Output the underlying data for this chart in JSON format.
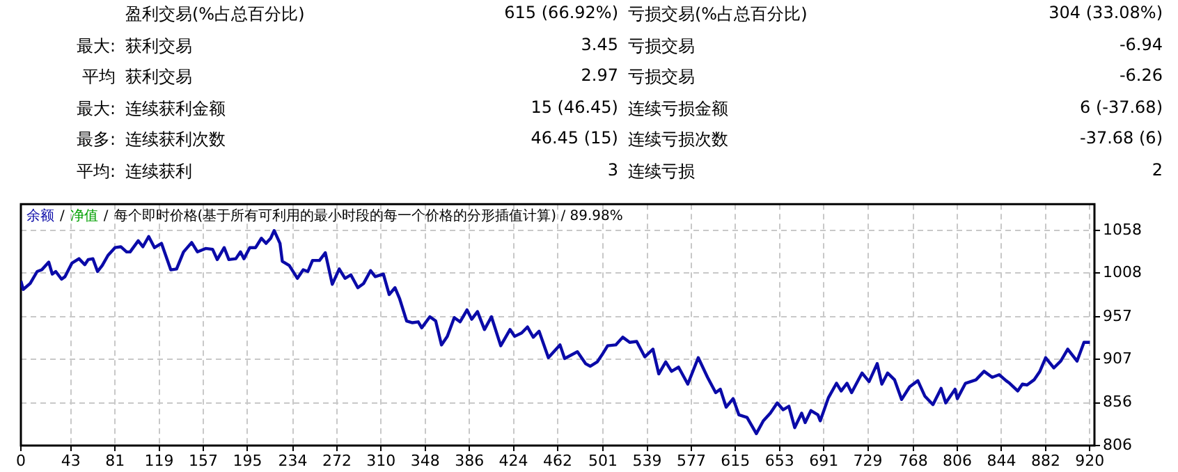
{
  "chart_data": [
    {
      "type": "other",
      "annotations": [
        "盈利交易(%占总百分比)",
        "615 (66.92%)",
        "亏损交易(%占总百分比)",
        "304 (33.08%)",
        "最大:",
        "获利交易",
        "3.45",
        "亏损交易",
        "-6.94",
        "平均",
        "获利交易",
        "2.97",
        "亏损交易",
        "-6.26",
        "最大:",
        "连续获利金额",
        "15 (46.45)",
        "连续亏损金额",
        "6 (-37.68)",
        "最多:",
        "连续获利次数",
        "46.45 (15)",
        "连续亏损次数",
        "-37.68 (6)",
        "平均:",
        "连续获利",
        "3",
        "连续亏损",
        "2"
      ]
    },
    {
      "type": "line",
      "title": "每个即时价格(基于所有可利用的最小时段的每一个价格的分形插值计算) / 89.98%",
      "annotations": [
        "/",
        "/"
      ],
      "legend": "top left",
      "grid": true,
      "line_style": "solid",
      "marker": "none",
      "x": [
        0,
        2,
        8,
        14,
        18,
        24,
        27,
        30,
        35,
        38,
        44,
        50,
        55,
        58,
        62,
        66,
        70,
        75,
        81,
        86,
        91,
        94,
        101,
        105,
        110,
        115,
        121,
        129,
        134,
        140,
        147,
        152,
        159,
        165,
        169,
        175,
        179,
        185,
        189,
        192,
        197,
        202,
        207,
        211,
        215,
        218,
        223,
        225,
        231,
        238,
        243,
        247,
        251,
        257,
        262,
        268,
        274,
        279,
        284,
        290,
        295,
        301,
        305,
        312,
        317,
        322,
        326,
        332,
        337,
        342,
        345,
        352,
        357,
        362,
        367,
        373,
        378,
        384,
        388,
        393,
        399,
        405,
        413,
        421,
        425,
        431,
        436,
        441,
        446,
        454,
        464,
        468,
        479,
        486,
        490,
        496,
        500,
        505,
        512,
        518,
        524,
        530,
        537,
        544,
        549,
        555,
        560,
        566,
        574,
        583,
        591,
        598,
        602,
        607,
        613,
        618,
        625,
        633,
        639,
        645,
        651,
        656,
        661,
        666,
        672,
        675,
        680,
        686,
        688,
        695,
        702,
        706,
        711,
        715,
        722,
        724,
        730,
        737,
        741,
        746,
        752,
        758,
        765,
        772,
        778,
        785,
        792,
        796,
        804,
        806,
        813,
        822,
        829,
        836,
        842,
        848,
        851,
        858,
        862,
        866,
        872,
        877,
        882,
        889,
        895,
        901,
        909,
        915,
        920
      ],
      "series": [
        {
          "name": "余额",
          "color": "#0a0aa8",
          "values": [
            999,
            989,
            996,
            1010,
            1012,
            1021,
            1007,
            1010,
            1001,
            1004,
            1020,
            1025,
            1018,
            1024,
            1025,
            1010,
            1017,
            1029,
            1038,
            1039,
            1033,
            1033,
            1046,
            1039,
            1051,
            1038,
            1043,
            1012,
            1013,
            1033,
            1044,
            1033,
            1037,
            1036,
            1024,
            1038,
            1024,
            1025,
            1033,
            1025,
            1038,
            1038,
            1049,
            1043,
            1049,
            1058,
            1043,
            1022,
            1017,
            1002,
            1012,
            1010,
            1023,
            1023,
            1032,
            995,
            1013,
            1002,
            1006,
            991,
            996,
            1011,
            1004,
            1007,
            983,
            991,
            978,
            952,
            950,
            951,
            944,
            957,
            952,
            924,
            934,
            956,
            951,
            965,
            954,
            963,
            942,
            957,
            923,
            942,
            934,
            938,
            945,
            933,
            940,
            909,
            924,
            908,
            916,
            902,
            899,
            904,
            912,
            923,
            924,
            933,
            927,
            928,
            910,
            919,
            890,
            904,
            893,
            898,
            878,
            909,
            886,
            868,
            872,
            851,
            861,
            842,
            839,
            820,
            835,
            844,
            856,
            848,
            852,
            827,
            844,
            833,
            847,
            842,
            835,
            862,
            879,
            870,
            879,
            868,
            886,
            891,
            881,
            902,
            878,
            891,
            883,
            860,
            875,
            882,
            864,
            854,
            873,
            856,
            872,
            861,
            879,
            883,
            893,
            886,
            889,
            882,
            879,
            870,
            878,
            877,
            883,
            893,
            909,
            897,
            905,
            919,
            905,
            927,
            927
          ]
        },
        {
          "name": "净值",
          "color": "#00a000",
          "values": [
            null,
            null,
            null,
            null,
            null,
            null,
            null,
            null,
            null,
            null,
            null,
            null,
            null,
            null,
            null,
            null,
            null,
            null,
            null,
            null,
            null,
            null,
            null,
            null,
            null,
            null,
            null,
            null,
            null,
            null,
            null,
            null,
            null,
            null,
            null,
            null,
            null,
            null,
            null,
            null,
            null,
            null,
            null,
            null,
            null,
            null,
            null,
            null,
            null,
            null,
            null,
            null,
            null,
            null,
            null,
            null,
            null,
            null,
            null,
            null,
            null,
            null,
            null,
            null,
            null,
            null,
            null,
            null,
            null,
            null,
            null,
            null,
            null,
            null,
            null,
            null,
            null,
            null,
            null,
            null,
            null,
            null,
            null,
            null,
            null,
            null,
            null,
            null,
            null,
            null,
            null,
            null,
            null,
            null,
            null,
            null,
            null,
            null,
            null,
            null,
            null,
            null,
            null,
            null,
            null,
            null,
            null,
            null,
            null,
            null,
            null,
            null,
            null,
            null,
            null,
            null,
            null,
            null,
            null,
            null,
            null,
            null,
            null,
            null,
            null,
            null,
            null,
            null,
            null,
            null,
            null,
            null,
            null,
            null,
            null,
            null,
            null,
            null,
            null,
            null,
            null,
            null,
            null,
            null,
            null,
            null,
            null,
            null,
            null,
            null,
            null,
            null,
            null,
            null,
            null,
            null,
            null,
            null,
            null,
            null,
            null,
            null,
            null,
            null,
            null,
            null,
            null,
            null,
            null
          ]
        }
      ],
      "xlim": [
        0,
        924
      ],
      "xticks": [
        0,
        43,
        81,
        119,
        157,
        195,
        234,
        272,
        310,
        348,
        386,
        424,
        462,
        501,
        539,
        577,
        615,
        653,
        691,
        729,
        768,
        806,
        844,
        882,
        920
      ],
      "ylim": [
        806,
        1089
      ],
      "yticks": [
        806,
        856,
        907,
        957,
        1008,
        1058
      ]
    }
  ]
}
